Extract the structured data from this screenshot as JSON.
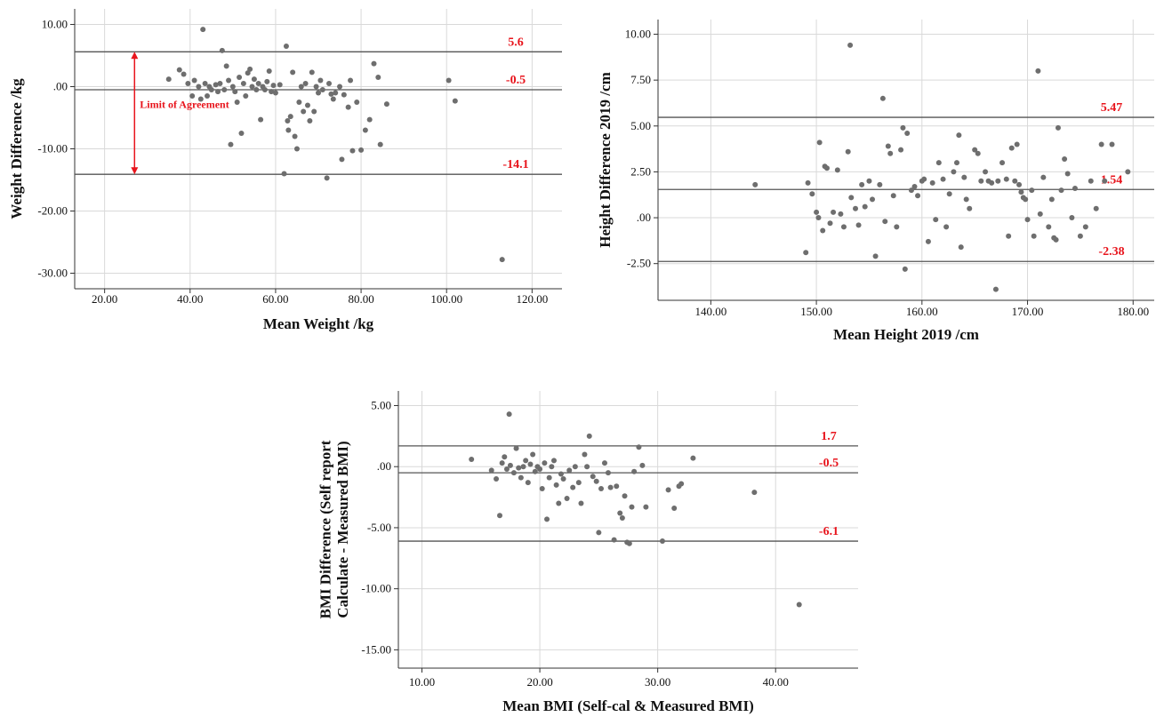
{
  "chart_data": [
    {
      "type": "scatter",
      "xlabel": "Mean Weight /kg",
      "ylabel": "Weight Difference /kg",
      "xlim": [
        13,
        127
      ],
      "ylim": [
        -32.5,
        12.5
      ],
      "xticks": [
        "20.00",
        "40.00",
        "60.00",
        "80.00",
        "100.00",
        "120.00"
      ],
      "yticks": [
        "10.00",
        ".00",
        "-10.00",
        "-20.00",
        "-30.00"
      ],
      "grid": true,
      "reference_lines": [
        {
          "value": 5.6,
          "label": "5.6"
        },
        {
          "value": -0.5,
          "label": "-0.5"
        },
        {
          "value": -14.1,
          "label": "-14.1"
        }
      ],
      "annotation": {
        "text": "Limit of Agreement",
        "from": 5.6,
        "to": -14.1,
        "x": 27
      },
      "colors": {
        "points": "#6e6e6e",
        "reference": "#555555",
        "labels": "#e8141c"
      },
      "points": [
        [
          35,
          1.2
        ],
        [
          37.5,
          2.7
        ],
        [
          38.5,
          2
        ],
        [
          39.5,
          0.5
        ],
        [
          40.5,
          -1.5
        ],
        [
          41,
          1
        ],
        [
          42,
          0
        ],
        [
          42.5,
          -2
        ],
        [
          43,
          9.2
        ],
        [
          43.5,
          0.5
        ],
        [
          44,
          -1.5
        ],
        [
          44.5,
          0
        ],
        [
          45,
          -0.5
        ],
        [
          46,
          0.3
        ],
        [
          46.5,
          -0.8
        ],
        [
          47,
          0.5
        ],
        [
          47.5,
          5.8
        ],
        [
          48,
          -0.5
        ],
        [
          48.5,
          3.3
        ],
        [
          49,
          1
        ],
        [
          49.5,
          -9.3
        ],
        [
          50,
          0
        ],
        [
          50.5,
          -0.8
        ],
        [
          51,
          -2.5
        ],
        [
          51.5,
          1.5
        ],
        [
          52,
          -7.5
        ],
        [
          52.5,
          0.5
        ],
        [
          53,
          -1.5
        ],
        [
          53.5,
          2.2
        ],
        [
          54,
          2.8
        ],
        [
          54.5,
          0
        ],
        [
          55,
          1.2
        ],
        [
          55.5,
          -0.5
        ],
        [
          56,
          0.5
        ],
        [
          56.5,
          -5.3
        ],
        [
          57,
          0
        ],
        [
          57.5,
          -0.5
        ],
        [
          58,
          0.8
        ],
        [
          58.5,
          2.5
        ],
        [
          59,
          -0.8
        ],
        [
          59.5,
          0.2
        ],
        [
          60,
          -1
        ],
        [
          61,
          0.3
        ],
        [
          62,
          -14
        ],
        [
          62.5,
          6.5
        ],
        [
          62.8,
          -5.5
        ],
        [
          63,
          -7
        ],
        [
          63.5,
          -4.8
        ],
        [
          64,
          2.3
        ],
        [
          64.5,
          -8
        ],
        [
          65,
          -10
        ],
        [
          65.5,
          -2.5
        ],
        [
          66,
          0
        ],
        [
          66.5,
          -4
        ],
        [
          67,
          0.5
        ],
        [
          67.5,
          -3
        ],
        [
          68,
          -5.5
        ],
        [
          68.5,
          2.3
        ],
        [
          69,
          -4
        ],
        [
          69.5,
          0
        ],
        [
          70,
          -1
        ],
        [
          70.5,
          1
        ],
        [
          71,
          -0.5
        ],
        [
          72,
          -14.7
        ],
        [
          72.5,
          0.5
        ],
        [
          73,
          -1.2
        ],
        [
          73.5,
          -2
        ],
        [
          74,
          -1
        ],
        [
          75,
          0
        ],
        [
          75.5,
          -11.7
        ],
        [
          76,
          -1.3
        ],
        [
          77,
          -3.3
        ],
        [
          77.5,
          1
        ],
        [
          78,
          -10.3
        ],
        [
          79,
          -2.5
        ],
        [
          80,
          -10.2
        ],
        [
          81,
          -7
        ],
        [
          82,
          -5.3
        ],
        [
          83,
          3.7
        ],
        [
          84,
          1.5
        ],
        [
          84.5,
          -9.3
        ],
        [
          86,
          -2.8
        ],
        [
          100.5,
          1
        ],
        [
          102,
          -2.3
        ],
        [
          113,
          -27.8
        ]
      ]
    },
    {
      "type": "scatter",
      "xlabel": "Mean Height 2019 /cm",
      "ylabel": "Height Difference 2019 /cm",
      "xlim": [
        135,
        182
      ],
      "ylim": [
        -4.5,
        10.8
      ],
      "xticks": [
        "140.00",
        "150.00",
        "160.00",
        "170.00",
        "180.00"
      ],
      "yticks": [
        "10.00",
        "7.50",
        "5.00",
        "2.50",
        ".00",
        "-2.50"
      ],
      "grid": true,
      "reference_lines": [
        {
          "value": 5.47,
          "label": "5.47"
        },
        {
          "value": 1.54,
          "label": "1.54"
        },
        {
          "value": -2.38,
          "label": "-2.38"
        }
      ],
      "colors": {
        "points": "#6e6e6e",
        "reference": "#555555",
        "labels": "#e8141c"
      },
      "points": [
        [
          144.2,
          1.8
        ],
        [
          149,
          -1.9
        ],
        [
          149.2,
          1.9
        ],
        [
          149.6,
          1.3
        ],
        [
          150,
          0.3
        ],
        [
          150.2,
          0
        ],
        [
          150.3,
          4.1
        ],
        [
          150.6,
          -0.7
        ],
        [
          150.8,
          2.8
        ],
        [
          151,
          2.7
        ],
        [
          151.3,
          -0.3
        ],
        [
          151.6,
          0.3
        ],
        [
          152,
          2.6
        ],
        [
          152.3,
          0.2
        ],
        [
          152.6,
          -0.5
        ],
        [
          153,
          3.6
        ],
        [
          153.2,
          9.4
        ],
        [
          153.3,
          1.1
        ],
        [
          153.7,
          0.5
        ],
        [
          154,
          -0.4
        ],
        [
          154.3,
          1.8
        ],
        [
          154.6,
          0.6
        ],
        [
          155,
          2
        ],
        [
          155.3,
          1
        ],
        [
          155.6,
          -2.1
        ],
        [
          156,
          1.8
        ],
        [
          156.3,
          6.5
        ],
        [
          156.5,
          -0.2
        ],
        [
          156.8,
          3.9
        ],
        [
          157,
          3.5
        ],
        [
          157.3,
          1.2
        ],
        [
          157.6,
          -0.5
        ],
        [
          158,
          3.7
        ],
        [
          158.2,
          4.9
        ],
        [
          158.4,
          -2.8
        ],
        [
          158.6,
          4.6
        ],
        [
          159,
          1.5
        ],
        [
          159.3,
          1.7
        ],
        [
          159.6,
          1.2
        ],
        [
          160,
          2
        ],
        [
          160.2,
          2.1
        ],
        [
          160.6,
          -1.3
        ],
        [
          161,
          1.9
        ],
        [
          161.3,
          -0.1
        ],
        [
          161.6,
          3
        ],
        [
          162,
          2.1
        ],
        [
          162.3,
          -0.5
        ],
        [
          162.6,
          1.3
        ],
        [
          163,
          2.5
        ],
        [
          163.3,
          3
        ],
        [
          163.5,
          4.5
        ],
        [
          163.7,
          -1.6
        ],
        [
          164,
          2.2
        ],
        [
          164.2,
          1
        ],
        [
          164.5,
          0.5
        ],
        [
          165,
          3.7
        ],
        [
          165.3,
          3.5
        ],
        [
          165.6,
          2
        ],
        [
          166,
          2.5
        ],
        [
          166.3,
          2
        ],
        [
          166.6,
          1.9
        ],
        [
          167,
          -3.9
        ],
        [
          167.2,
          2
        ],
        [
          167.6,
          3
        ],
        [
          168,
          2.1
        ],
        [
          168.2,
          -1
        ],
        [
          168.5,
          3.8
        ],
        [
          168.8,
          2
        ],
        [
          169,
          4
        ],
        [
          169.2,
          1.8
        ],
        [
          169.4,
          1.4
        ],
        [
          169.6,
          1.1
        ],
        [
          169.8,
          1
        ],
        [
          170,
          -0.1
        ],
        [
          170.4,
          1.5
        ],
        [
          170.6,
          -1
        ],
        [
          171,
          8
        ],
        [
          171.2,
          0.2
        ],
        [
          171.5,
          2.2
        ],
        [
          172,
          -0.5
        ],
        [
          172.3,
          1
        ],
        [
          172.5,
          -1.1
        ],
        [
          172.7,
          -1.2
        ],
        [
          172.9,
          4.9
        ],
        [
          173.2,
          1.5
        ],
        [
          173.5,
          3.2
        ],
        [
          173.8,
          2.4
        ],
        [
          174.2,
          0
        ],
        [
          174.5,
          1.6
        ],
        [
          175,
          -1
        ],
        [
          175.5,
          -0.5
        ],
        [
          176,
          2
        ],
        [
          176.5,
          0.5
        ],
        [
          177,
          4
        ],
        [
          177.3,
          2
        ],
        [
          178,
          4
        ],
        [
          179.5,
          2.5
        ]
      ]
    },
    {
      "type": "scatter",
      "xlabel": "Mean BMI (Self-cal & Measured BMI)",
      "ylabel": "BMI Difference (Self report Calculate - Measured BMI)",
      "ylabel_lines": [
        "BMI Difference (Self report",
        "Calculate - Measured BMI)"
      ],
      "xlim": [
        8,
        47
      ],
      "ylim": [
        -16.5,
        6.2
      ],
      "xticks": [
        "10.00",
        "20.00",
        "30.00",
        "40.00"
      ],
      "yticks": [
        "5.00",
        ".00",
        "-5.00",
        "-10.00",
        "-15.00"
      ],
      "grid": true,
      "reference_lines": [
        {
          "value": 1.7,
          "label": "1.7"
        },
        {
          "value": -0.5,
          "label": "-0.5"
        },
        {
          "value": -6.1,
          "label": "-6.1"
        }
      ],
      "colors": {
        "points": "#6e6e6e",
        "reference": "#555555",
        "labels": "#e8141c"
      },
      "points": [
        [
          14.2,
          0.6
        ],
        [
          15.9,
          -0.3
        ],
        [
          16.3,
          -1
        ],
        [
          16.6,
          -4
        ],
        [
          16.8,
          0.3
        ],
        [
          17,
          0.8
        ],
        [
          17.2,
          -0.2
        ],
        [
          17.4,
          4.3
        ],
        [
          17.5,
          0.1
        ],
        [
          17.8,
          -0.5
        ],
        [
          18,
          1.5
        ],
        [
          18.2,
          -0.1
        ],
        [
          18.4,
          -0.9
        ],
        [
          18.6,
          0
        ],
        [
          18.8,
          0.5
        ],
        [
          19,
          -1.3
        ],
        [
          19.2,
          0.2
        ],
        [
          19.4,
          1
        ],
        [
          19.6,
          -0.4
        ],
        [
          19.8,
          0
        ],
        [
          20,
          -0.2
        ],
        [
          20.2,
          -1.8
        ],
        [
          20.4,
          0.3
        ],
        [
          20.6,
          -4.3
        ],
        [
          20.8,
          -0.9
        ],
        [
          21,
          0
        ],
        [
          21.2,
          0.5
        ],
        [
          21.4,
          -1.5
        ],
        [
          21.6,
          -3
        ],
        [
          21.8,
          -0.6
        ],
        [
          22,
          -1
        ],
        [
          22.3,
          -2.6
        ],
        [
          22.5,
          -0.3
        ],
        [
          22.8,
          -1.7
        ],
        [
          23,
          0
        ],
        [
          23.3,
          -1.3
        ],
        [
          23.5,
          -3
        ],
        [
          23.8,
          1
        ],
        [
          24,
          0
        ],
        [
          24.2,
          2.5
        ],
        [
          24.5,
          -0.8
        ],
        [
          24.8,
          -1.2
        ],
        [
          25,
          -5.4
        ],
        [
          25.2,
          -1.8
        ],
        [
          25.5,
          0.3
        ],
        [
          25.8,
          -0.5
        ],
        [
          26,
          -1.7
        ],
        [
          26.3,
          -6
        ],
        [
          26.5,
          -1.6
        ],
        [
          26.8,
          -3.8
        ],
        [
          27,
          -4.2
        ],
        [
          27.2,
          -2.4
        ],
        [
          27.4,
          -6.2
        ],
        [
          27.6,
          -6.3
        ],
        [
          27.8,
          -3.3
        ],
        [
          28,
          -0.4
        ],
        [
          28.4,
          1.6
        ],
        [
          28.7,
          0.1
        ],
        [
          29,
          -3.3
        ],
        [
          30.4,
          -6.1
        ],
        [
          30.9,
          -1.9
        ],
        [
          31.4,
          -3.4
        ],
        [
          31.8,
          -1.6
        ],
        [
          32,
          -1.4
        ],
        [
          33,
          0.7
        ],
        [
          38.2,
          -2.1
        ],
        [
          42,
          -11.3
        ]
      ]
    }
  ]
}
